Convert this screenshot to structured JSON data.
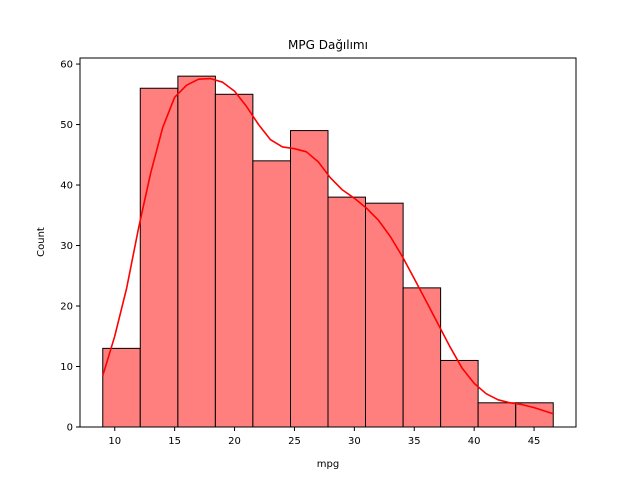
{
  "chart_data": {
    "type": "histogram",
    "title": "MPG Dağılımı",
    "xlabel": "mpg",
    "ylabel": "Count",
    "xlim": [
      7.1,
      48.5
    ],
    "ylim": [
      0,
      61
    ],
    "xticks": [
      10,
      15,
      20,
      25,
      30,
      35,
      40,
      45
    ],
    "yticks": [
      0,
      10,
      20,
      30,
      40,
      50,
      60
    ],
    "bin_edges": [
      9.0,
      12.13,
      15.27,
      18.4,
      21.53,
      24.67,
      27.8,
      30.93,
      34.07,
      37.2,
      40.33,
      43.47,
      46.6
    ],
    "counts": [
      13,
      56,
      58,
      55,
      44,
      49,
      38,
      37,
      23,
      11,
      4,
      4
    ],
    "kde": {
      "x": [
        9.0,
        10.0,
        11.0,
        12.0,
        13.0,
        14.0,
        15.0,
        16.0,
        17.0,
        18.0,
        19.0,
        20.0,
        21.0,
        22.0,
        23.0,
        24.0,
        25.0,
        26.0,
        27.0,
        28.0,
        29.0,
        30.0,
        31.0,
        32.0,
        33.0,
        34.0,
        35.0,
        36.0,
        37.0,
        38.0,
        39.0,
        40.0,
        41.0,
        42.0,
        43.0,
        44.0,
        45.0,
        46.6
      ],
      "y": [
        8.5,
        15,
        23,
        33,
        42,
        49.5,
        54.5,
        56.5,
        57.5,
        57.6,
        57,
        55.5,
        53,
        50,
        47.5,
        46.3,
        46,
        45.5,
        43.8,
        41.2,
        39.2,
        37.8,
        36.2,
        34.2,
        31.5,
        28.2,
        24.5,
        20.8,
        17.0,
        13.2,
        9.7,
        7.2,
        5.5,
        4.5,
        4.0,
        3.7,
        3.2,
        2.2
      ]
    },
    "colors": {
      "bar_fill": "#ff7f7f",
      "bar_edge": "#000000",
      "kde_line": "#ff0000"
    },
    "grid": false,
    "legend": "none"
  }
}
